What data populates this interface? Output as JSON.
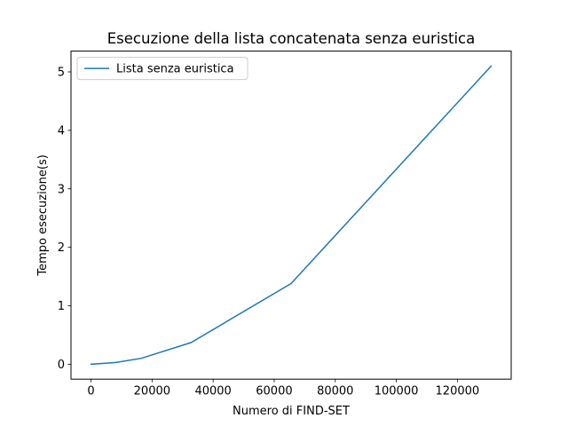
{
  "chart_data": {
    "type": "line",
    "title": "Esecuzione della lista concatenata senza euristica",
    "xlabel": "Numero di FIND-SET",
    "ylabel": "Tempo esecuzione(s)",
    "xlim": [
      -6553.6,
      137625.6
    ],
    "ylim": [
      -0.255,
      5.355
    ],
    "xticks": [
      0,
      20000,
      40000,
      60000,
      80000,
      100000,
      120000
    ],
    "yticks": [
      0,
      1,
      2,
      3,
      4,
      5
    ],
    "grid": false,
    "legend_position": "upper-left",
    "series": [
      {
        "name": "Lista senza euristica",
        "color": "#1f77b4",
        "x": [
          0,
          8192,
          16384,
          32768,
          65536,
          131072
        ],
        "y": [
          0.0,
          0.03,
          0.1,
          0.37,
          1.38,
          5.1
        ]
      }
    ]
  }
}
